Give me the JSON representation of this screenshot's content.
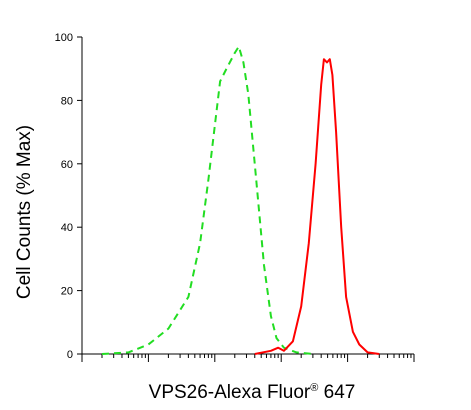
{
  "chart_data": {
    "type": "line",
    "title": "",
    "xlabel": "VPS26-Alexa Fluor",
    "xlabel_superscript": "®",
    "xlabel_suffix": " 647",
    "ylabel": "Cell Counts (% Max)",
    "x_scale": "log",
    "xlim": [
      1,
      100000
    ],
    "ylim": [
      0,
      100
    ],
    "y_ticks": [
      0,
      20,
      40,
      60,
      80,
      100
    ],
    "grid": false,
    "legend": "none",
    "series": [
      {
        "color": "#22dd22",
        "dash": "dashed",
        "points": [
          [
            2,
            0
          ],
          [
            5,
            0.5
          ],
          [
            10,
            3
          ],
          [
            20,
            8
          ],
          [
            40,
            18
          ],
          [
            60,
            35
          ],
          [
            80,
            55
          ],
          [
            100,
            72
          ],
          [
            120,
            86
          ],
          [
            150,
            90
          ],
          [
            200,
            95
          ],
          [
            230,
            97
          ],
          [
            270,
            92
          ],
          [
            320,
            82
          ],
          [
            420,
            55
          ],
          [
            550,
            28
          ],
          [
            700,
            12
          ],
          [
            850,
            5
          ],
          [
            1100,
            2
          ],
          [
            1700,
            0.5
          ],
          [
            3000,
            0
          ]
        ]
      },
      {
        "color": "#ff0000",
        "dash": "solid",
        "points": [
          [
            400,
            0
          ],
          [
            700,
            1
          ],
          [
            900,
            2
          ],
          [
            1100,
            1
          ],
          [
            1500,
            4
          ],
          [
            2000,
            15
          ],
          [
            2600,
            35
          ],
          [
            3300,
            60
          ],
          [
            4000,
            85
          ],
          [
            4400,
            93
          ],
          [
            4900,
            92
          ],
          [
            5400,
            93
          ],
          [
            5900,
            88
          ],
          [
            6700,
            70
          ],
          [
            8000,
            40
          ],
          [
            9500,
            18
          ],
          [
            12000,
            7
          ],
          [
            15000,
            3
          ],
          [
            20000,
            0.5
          ],
          [
            30000,
            0
          ]
        ]
      }
    ]
  }
}
